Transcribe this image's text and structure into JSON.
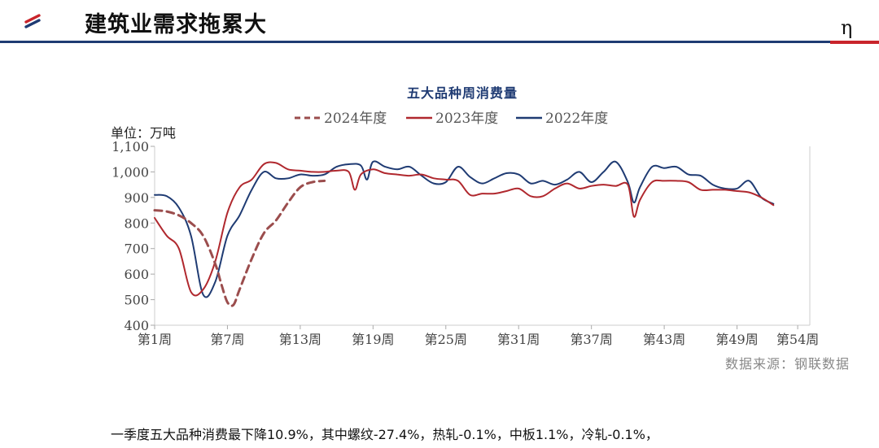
{
  "header": {
    "title": "建筑业需求拖累大",
    "corner_glyph": "η"
  },
  "colors": {
    "brand_blue": "#1f3b73",
    "brand_red": "#c9242b"
  },
  "chart_data": {
    "type": "line",
    "title": "五大品种周消费量",
    "unit_label": "单位：万吨",
    "ylim": [
      400,
      1100
    ],
    "y_ticks": [
      400,
      500,
      600,
      700,
      800,
      900,
      1000,
      1100
    ],
    "y_tick_labels": [
      "400",
      "500",
      "600",
      "700",
      "800",
      "900",
      "1,000",
      "1,100"
    ],
    "x_range": [
      1,
      55
    ],
    "x_ticks": [
      1,
      7,
      13,
      19,
      25,
      31,
      37,
      43,
      49,
      54
    ],
    "x_tick_labels": [
      "第1周",
      "第7周",
      "第13周",
      "第19周",
      "第25周",
      "第31周",
      "第37周",
      "第43周",
      "第49周",
      "第54周"
    ],
    "grid": false,
    "legend_position": "top",
    "source": "数据来源：钢联数据",
    "series": [
      {
        "name": "2024年度",
        "color": "#9b4d4d",
        "dash": true,
        "x": [
          1,
          2,
          3,
          4,
          5,
          6,
          6.5,
          7,
          7.5,
          8,
          9,
          10,
          11,
          12,
          13,
          14,
          15
        ],
        "y": [
          850,
          845,
          830,
          800,
          750,
          640,
          560,
          490,
          480,
          540,
          660,
          760,
          810,
          880,
          940,
          960,
          965
        ]
      },
      {
        "name": "2023年度",
        "color": "#b0282e",
        "dash": false,
        "x": [
          1,
          2,
          3,
          4,
          5,
          6,
          7,
          8,
          9,
          10,
          11,
          12,
          13,
          14,
          15,
          16,
          17,
          17.5,
          18,
          19,
          20,
          21,
          22,
          23,
          24,
          25,
          26,
          27,
          28,
          29,
          30,
          31,
          32,
          33,
          34,
          35,
          36,
          37,
          38,
          39,
          40,
          40.5,
          41,
          42,
          43,
          44,
          45,
          46,
          47,
          48,
          49,
          50,
          51,
          52
        ],
        "y": [
          820,
          750,
          700,
          530,
          540,
          650,
          840,
          940,
          970,
          1030,
          1035,
          1010,
          1005,
          1000,
          1000,
          1005,
          1000,
          930,
          990,
          1010,
          995,
          990,
          985,
          990,
          975,
          970,
          965,
          910,
          915,
          915,
          925,
          935,
          905,
          905,
          935,
          955,
          935,
          945,
          950,
          945,
          950,
          825,
          890,
          960,
          965,
          965,
          960,
          930,
          930,
          930,
          925,
          920,
          900,
          870
        ]
      },
      {
        "name": "2022年度",
        "color": "#1f3b73",
        "dash": false,
        "x": [
          1,
          2,
          3,
          4,
          5,
          6,
          7,
          8,
          9,
          10,
          11,
          12,
          13,
          14,
          15,
          16,
          17,
          18,
          18.5,
          19,
          20,
          21,
          22,
          23,
          24,
          25,
          26,
          27,
          28,
          29,
          30,
          31,
          32,
          33,
          34,
          35,
          36,
          37,
          38,
          39,
          40,
          40.5,
          41,
          42,
          43,
          44,
          45,
          46,
          47,
          48,
          49,
          50,
          51,
          52
        ],
        "y": [
          910,
          905,
          860,
          750,
          520,
          570,
          750,
          830,
          930,
          1000,
          975,
          975,
          990,
          985,
          990,
          1020,
          1030,
          1025,
          970,
          1040,
          1020,
          1010,
          1020,
          985,
          955,
          960,
          1020,
          980,
          955,
          975,
          995,
          990,
          955,
          965,
          950,
          970,
          1000,
          960,
          1000,
          1040,
          960,
          880,
          940,
          1020,
          1015,
          1020,
          990,
          985,
          950,
          935,
          935,
          965,
          900,
          875
        ]
      }
    ]
  },
  "footnote": "一季度五大品种消费最下降10.9%，其中螺纹-27.4%，热轧-0.1%，中板1.1%，冷轧-0.1%，"
}
